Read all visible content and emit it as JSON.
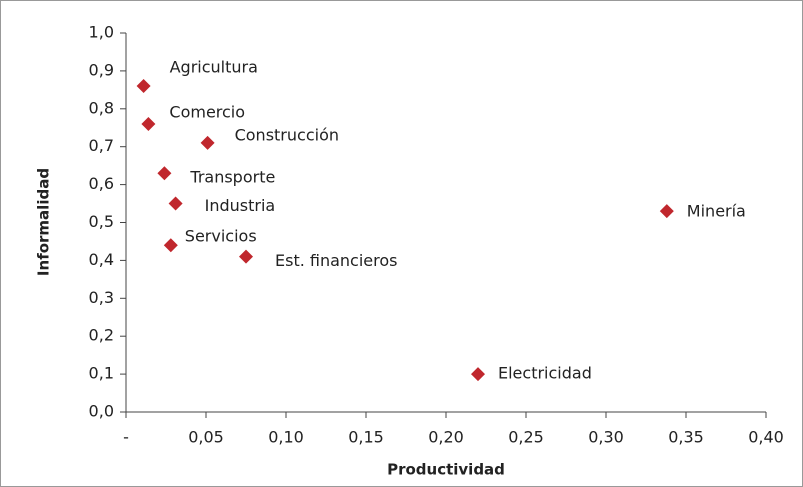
{
  "chart_data": {
    "type": "scatter",
    "xlabel": "Productividad",
    "ylabel": "Informalidad",
    "labels": [
      "Agricultura",
      "Comercio",
      "Construcción",
      "Transporte",
      "Industria",
      "Servicios",
      "Est. financieros",
      "Minería",
      "Electricidad"
    ],
    "x": [
      0.011,
      0.014,
      0.051,
      0.024,
      0.031,
      0.028,
      0.075,
      0.338,
      0.22
    ],
    "values": [
      0.86,
      0.76,
      0.71,
      0.63,
      0.55,
      0.44,
      0.41,
      0.53,
      0.1
    ],
    "color": "#c0272d",
    "xlim": [
      0,
      0.4
    ],
    "xticks": [
      {
        "value": 0,
        "label": "-"
      },
      {
        "value": 0.05,
        "label": "0,05"
      },
      {
        "value": 0.1,
        "label": "0,10"
      },
      {
        "value": 0.15,
        "label": "0,15"
      },
      {
        "value": 0.2,
        "label": "0,20"
      },
      {
        "value": 0.25,
        "label": "0,25"
      },
      {
        "value": 0.3,
        "label": "0,30"
      },
      {
        "value": 0.35,
        "label": "0,35"
      },
      {
        "value": 0.4,
        "label": "0,40"
      }
    ],
    "ylim": [
      0,
      1
    ],
    "yticks": [
      {
        "value": 0,
        "label": "0,0"
      },
      {
        "value": 0.1,
        "label": "0,1"
      },
      {
        "value": 0.2,
        "label": "0,2"
      },
      {
        "value": 0.3,
        "label": "0,3"
      },
      {
        "value": 0.4,
        "label": "0,4"
      },
      {
        "value": 0.5,
        "label": "0,5"
      },
      {
        "value": 0.6,
        "label": "0,6"
      },
      {
        "value": 0.7,
        "label": "0,7"
      },
      {
        "value": 0.8,
        "label": "0,8"
      },
      {
        "value": 0.9,
        "label": "0,9"
      },
      {
        "value": 1,
        "label": "1,0"
      }
    ],
    "grid": false
  }
}
